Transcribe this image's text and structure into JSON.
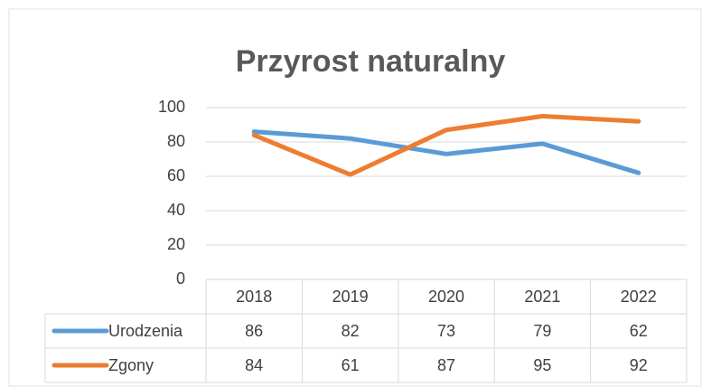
{
  "chart_data": {
    "type": "line",
    "title": "Przyrost naturalny",
    "categories": [
      "2018",
      "2019",
      "2020",
      "2021",
      "2022"
    ],
    "series": [
      {
        "name": "Urodzenia",
        "color": "#5b9bd5",
        "values": [
          86,
          82,
          73,
          79,
          62
        ]
      },
      {
        "name": "Zgony",
        "color": "#ed7d31",
        "values": [
          84,
          61,
          87,
          95,
          92
        ]
      }
    ],
    "ylim": [
      0,
      100
    ],
    "yticks": [
      0,
      20,
      40,
      60,
      80,
      100
    ],
    "grid": true
  }
}
